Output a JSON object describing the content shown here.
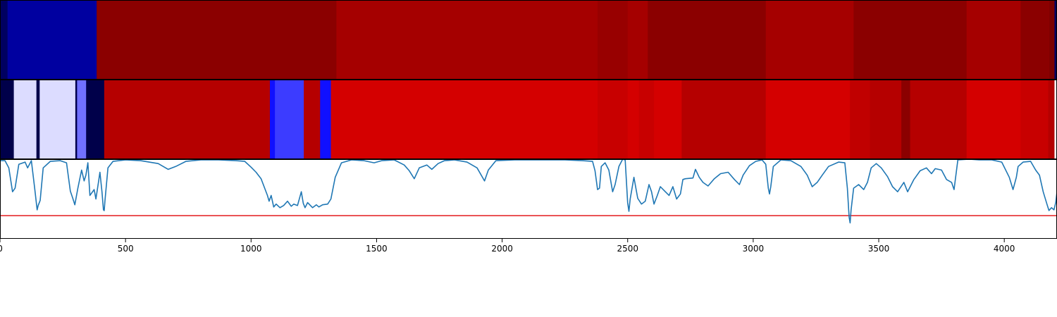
{
  "chart_data": [
    {
      "type": "heatmap",
      "x_range": [
        0,
        4210
      ],
      "segments": [
        {
          "x0": 0,
          "x1": 30,
          "color": "#000060"
        },
        {
          "x0": 30,
          "x1": 385,
          "color": "#0000a0"
        },
        {
          "x0": 385,
          "x1": 1340,
          "color": "#8b0000"
        },
        {
          "x0": 1340,
          "x1": 2380,
          "color": "#a50000"
        },
        {
          "x0": 2380,
          "x1": 2500,
          "color": "#980000"
        },
        {
          "x0": 2500,
          "x1": 2580,
          "color": "#a50000"
        },
        {
          "x0": 2580,
          "x1": 3050,
          "color": "#8b0000"
        },
        {
          "x0": 3050,
          "x1": 3400,
          "color": "#a50000"
        },
        {
          "x0": 3400,
          "x1": 3850,
          "color": "#8b0000"
        },
        {
          "x0": 3850,
          "x1": 4065,
          "color": "#a50000"
        },
        {
          "x0": 4065,
          "x1": 4180,
          "color": "#8b0000"
        },
        {
          "x0": 4180,
          "x1": 4200,
          "color": "#7a0000"
        },
        {
          "x0": 4200,
          "x1": 4210,
          "color": "#000060"
        }
      ]
    },
    {
      "type": "heatmap",
      "x_range": [
        0,
        4210
      ],
      "segments": [
        {
          "x0": 0,
          "x1": 55,
          "color": "#00004a"
        },
        {
          "x0": 55,
          "x1": 145,
          "color": "#dcdcff"
        },
        {
          "x0": 145,
          "x1": 158,
          "color": "#00004a"
        },
        {
          "x0": 158,
          "x1": 300,
          "color": "#dcdcff"
        },
        {
          "x0": 300,
          "x1": 307,
          "color": "#00004a"
        },
        {
          "x0": 307,
          "x1": 343,
          "color": "#7070ff"
        },
        {
          "x0": 343,
          "x1": 415,
          "color": "#00004a"
        },
        {
          "x0": 415,
          "x1": 1075,
          "color": "#b50000"
        },
        {
          "x0": 1075,
          "x1": 1095,
          "color": "#1010ff"
        },
        {
          "x0": 1095,
          "x1": 1210,
          "color": "#3c3cff"
        },
        {
          "x0": 1210,
          "x1": 1275,
          "color": "#b50000"
        },
        {
          "x0": 1275,
          "x1": 1318,
          "color": "#1010ff"
        },
        {
          "x0": 1318,
          "x1": 2380,
          "color": "#d40000"
        },
        {
          "x0": 2380,
          "x1": 2500,
          "color": "#c80000"
        },
        {
          "x0": 2500,
          "x1": 2545,
          "color": "#d40000"
        },
        {
          "x0": 2545,
          "x1": 2605,
          "color": "#c80000"
        },
        {
          "x0": 2605,
          "x1": 2715,
          "color": "#d40000"
        },
        {
          "x0": 2715,
          "x1": 3050,
          "color": "#b50000"
        },
        {
          "x0": 3050,
          "x1": 3385,
          "color": "#d40000"
        },
        {
          "x0": 3385,
          "x1": 3465,
          "color": "#c00000"
        },
        {
          "x0": 3465,
          "x1": 3590,
          "color": "#b50000"
        },
        {
          "x0": 3590,
          "x1": 3625,
          "color": "#8b0000"
        },
        {
          "x0": 3625,
          "x1": 3850,
          "color": "#b50000"
        },
        {
          "x0": 3850,
          "x1": 4065,
          "color": "#d40000"
        },
        {
          "x0": 4065,
          "x1": 4175,
          "color": "#c80000"
        },
        {
          "x0": 4175,
          "x1": 4200,
          "color": "#b50000"
        },
        {
          "x0": 4200,
          "x1": 4210,
          "color": "#ffffff"
        }
      ]
    },
    {
      "type": "line",
      "xlim": [
        0,
        4210
      ],
      "ylim": [
        -0.1,
        1.0
      ],
      "xticks": [
        0,
        500,
        1000,
        1500,
        2000,
        2500,
        3000,
        3500,
        4000
      ],
      "line_color": "#1f77b4",
      "threshold": 0.22,
      "threshold_color": "#e31a1c",
      "points": [
        [
          0,
          0.98
        ],
        [
          20,
          0.98
        ],
        [
          35,
          0.88
        ],
        [
          50,
          0.55
        ],
        [
          60,
          0.6
        ],
        [
          75,
          0.93
        ],
        [
          100,
          0.96
        ],
        [
          110,
          0.88
        ],
        [
          125,
          0.98
        ],
        [
          138,
          0.6
        ],
        [
          148,
          0.3
        ],
        [
          152,
          0.36
        ],
        [
          160,
          0.43
        ],
        [
          172,
          0.88
        ],
        [
          200,
          0.97
        ],
        [
          240,
          0.98
        ],
        [
          265,
          0.95
        ],
        [
          280,
          0.56
        ],
        [
          290,
          0.46
        ],
        [
          298,
          0.37
        ],
        [
          310,
          0.6
        ],
        [
          325,
          0.85
        ],
        [
          335,
          0.7
        ],
        [
          342,
          0.78
        ],
        [
          350,
          0.95
        ],
        [
          358,
          0.5
        ],
        [
          375,
          0.58
        ],
        [
          382,
          0.45
        ],
        [
          392,
          0.68
        ],
        [
          398,
          0.82
        ],
        [
          406,
          0.55
        ],
        [
          412,
          0.3
        ],
        [
          415,
          0.29
        ],
        [
          418,
          0.42
        ],
        [
          430,
          0.88
        ],
        [
          450,
          0.97
        ],
        [
          500,
          0.99
        ],
        [
          560,
          0.98
        ],
        [
          630,
          0.94
        ],
        [
          670,
          0.86
        ],
        [
          700,
          0.9
        ],
        [
          740,
          0.97
        ],
        [
          800,
          0.99
        ],
        [
          870,
          0.99
        ],
        [
          940,
          0.98
        ],
        [
          975,
          0.97
        ],
        [
          1000,
          0.89
        ],
        [
          1020,
          0.82
        ],
        [
          1040,
          0.73
        ],
        [
          1065,
          0.5
        ],
        [
          1072,
          0.42
        ],
        [
          1080,
          0.5
        ],
        [
          1085,
          0.42
        ],
        [
          1090,
          0.34
        ],
        [
          1100,
          0.38
        ],
        [
          1115,
          0.33
        ],
        [
          1130,
          0.36
        ],
        [
          1145,
          0.42
        ],
        [
          1160,
          0.35
        ],
        [
          1170,
          0.38
        ],
        [
          1185,
          0.36
        ],
        [
          1200,
          0.55
        ],
        [
          1208,
          0.39
        ],
        [
          1215,
          0.33
        ],
        [
          1225,
          0.4
        ],
        [
          1245,
          0.33
        ],
        [
          1260,
          0.37
        ],
        [
          1270,
          0.34
        ],
        [
          1285,
          0.37
        ],
        [
          1305,
          0.38
        ],
        [
          1318,
          0.45
        ],
        [
          1335,
          0.75
        ],
        [
          1360,
          0.95
        ],
        [
          1400,
          0.99
        ],
        [
          1450,
          0.98
        ],
        [
          1490,
          0.95
        ],
        [
          1520,
          0.98
        ],
        [
          1570,
          0.99
        ],
        [
          1610,
          0.92
        ],
        [
          1630,
          0.84
        ],
        [
          1650,
          0.73
        ],
        [
          1670,
          0.88
        ],
        [
          1700,
          0.92
        ],
        [
          1720,
          0.86
        ],
        [
          1745,
          0.94
        ],
        [
          1770,
          0.98
        ],
        [
          1810,
          0.99
        ],
        [
          1860,
          0.96
        ],
        [
          1900,
          0.88
        ],
        [
          1930,
          0.7
        ],
        [
          1945,
          0.85
        ],
        [
          1975,
          0.98
        ],
        [
          2050,
          0.99
        ],
        [
          2150,
          0.99
        ],
        [
          2250,
          0.99
        ],
        [
          2320,
          0.98
        ],
        [
          2360,
          0.97
        ],
        [
          2370,
          0.84
        ],
        [
          2380,
          0.58
        ],
        [
          2388,
          0.6
        ],
        [
          2395,
          0.9
        ],
        [
          2410,
          0.95
        ],
        [
          2425,
          0.85
        ],
        [
          2440,
          0.55
        ],
        [
          2450,
          0.65
        ],
        [
          2465,
          0.9
        ],
        [
          2480,
          1.0
        ],
        [
          2490,
          0.99
        ],
        [
          2500,
          0.4
        ],
        [
          2505,
          0.28
        ],
        [
          2510,
          0.45
        ],
        [
          2525,
          0.75
        ],
        [
          2540,
          0.46
        ],
        [
          2555,
          0.38
        ],
        [
          2570,
          0.42
        ],
        [
          2585,
          0.65
        ],
        [
          2595,
          0.55
        ],
        [
          2605,
          0.38
        ],
        [
          2618,
          0.5
        ],
        [
          2630,
          0.62
        ],
        [
          2650,
          0.55
        ],
        [
          2665,
          0.5
        ],
        [
          2680,
          0.62
        ],
        [
          2695,
          0.45
        ],
        [
          2710,
          0.52
        ],
        [
          2720,
          0.72
        ],
        [
          2730,
          0.73
        ],
        [
          2760,
          0.74
        ],
        [
          2770,
          0.86
        ],
        [
          2785,
          0.75
        ],
        [
          2800,
          0.68
        ],
        [
          2820,
          0.63
        ],
        [
          2845,
          0.73
        ],
        [
          2870,
          0.8
        ],
        [
          2900,
          0.82
        ],
        [
          2925,
          0.72
        ],
        [
          2945,
          0.65
        ],
        [
          2960,
          0.78
        ],
        [
          2985,
          0.91
        ],
        [
          3010,
          0.97
        ],
        [
          3035,
          0.99
        ],
        [
          3050,
          0.93
        ],
        [
          3060,
          0.6
        ],
        [
          3065,
          0.52
        ],
        [
          3070,
          0.62
        ],
        [
          3080,
          0.9
        ],
        [
          3110,
          0.99
        ],
        [
          3150,
          0.98
        ],
        [
          3190,
          0.9
        ],
        [
          3215,
          0.78
        ],
        [
          3235,
          0.62
        ],
        [
          3255,
          0.68
        ],
        [
          3275,
          0.78
        ],
        [
          3300,
          0.9
        ],
        [
          3340,
          0.96
        ],
        [
          3365,
          0.95
        ],
        [
          3375,
          0.6
        ],
        [
          3382,
          0.2
        ],
        [
          3386,
          0.12
        ],
        [
          3390,
          0.3
        ],
        [
          3400,
          0.6
        ],
        [
          3420,
          0.65
        ],
        [
          3440,
          0.58
        ],
        [
          3455,
          0.68
        ],
        [
          3470,
          0.88
        ],
        [
          3490,
          0.94
        ],
        [
          3510,
          0.88
        ],
        [
          3535,
          0.76
        ],
        [
          3555,
          0.62
        ],
        [
          3575,
          0.55
        ],
        [
          3600,
          0.68
        ],
        [
          3615,
          0.55
        ],
        [
          3640,
          0.72
        ],
        [
          3665,
          0.84
        ],
        [
          3690,
          0.88
        ],
        [
          3710,
          0.8
        ],
        [
          3725,
          0.87
        ],
        [
          3750,
          0.85
        ],
        [
          3770,
          0.72
        ],
        [
          3790,
          0.68
        ],
        [
          3800,
          0.58
        ],
        [
          3815,
          0.99
        ],
        [
          3860,
          1.0
        ],
        [
          3900,
          0.99
        ],
        [
          3950,
          0.99
        ],
        [
          3990,
          0.96
        ],
        [
          4020,
          0.75
        ],
        [
          4035,
          0.58
        ],
        [
          4048,
          0.75
        ],
        [
          4055,
          0.9
        ],
        [
          4075,
          0.96
        ],
        [
          4105,
          0.97
        ],
        [
          4125,
          0.85
        ],
        [
          4140,
          0.78
        ],
        [
          4155,
          0.55
        ],
        [
          4170,
          0.38
        ],
        [
          4178,
          0.29
        ],
        [
          4188,
          0.33
        ],
        [
          4198,
          0.3
        ],
        [
          4205,
          0.4
        ],
        [
          4210,
          0.55
        ]
      ]
    }
  ]
}
